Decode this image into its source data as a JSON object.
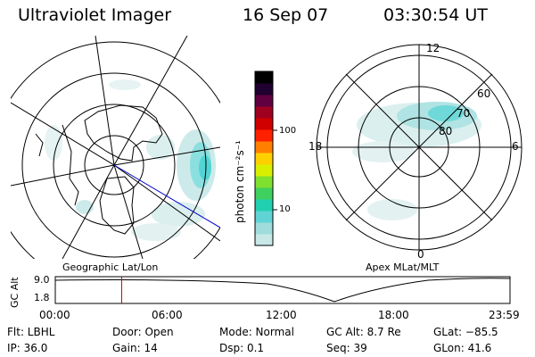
{
  "header": {
    "title": "Ultraviolet Imager",
    "date": "16 Sep 07",
    "time": "03:30:54 UT"
  },
  "geo_panel": {
    "caption": "Geographic Lat/Lon"
  },
  "apex_panel": {
    "caption": "Apex MLat/MLT",
    "mlt_labels": {
      "top": "12",
      "right": "6",
      "bottom": "0",
      "left": "18"
    },
    "mlat_labels": [
      "60",
      "70",
      "80"
    ]
  },
  "colorbar": {
    "title": "photon cm⁻²s⁻¹",
    "ticks": [
      "100",
      "10"
    ],
    "colors": [
      "#c8e8e8",
      "#a0dcdc",
      "#60d4d4",
      "#20d0b0",
      "#40d060",
      "#80e030",
      "#d8f000",
      "#ffd000",
      "#ff8000",
      "#ff2000",
      "#d00000",
      "#a00020",
      "#600040",
      "#200030",
      "#000000"
    ]
  },
  "altitude_plot": {
    "y_axis_label": "GC Alt",
    "y_ticks": [
      "9.0",
      "1.8"
    ],
    "time_ticks": [
      "00:00",
      "06:00",
      "12:00",
      "18:00",
      "23:59"
    ],
    "current_time_fraction": 0.146
  },
  "info": {
    "flt": "Flt: LBHL",
    "door": "Door: Open",
    "mode": "Mode: Normal",
    "gc_alt": "GC Alt: 8.7 Re",
    "glat": "GLat: −85.5",
    "ip": "IP: 36.0",
    "gain": "Gain: 14",
    "dsp": "Dsp:    0.1",
    "seq": "Seq: 39",
    "glon": "GLon:  41.6"
  },
  "colors": {
    "aurora_faint": "#c8e8e8",
    "aurora_mid": "#80dcdc",
    "aurora_bright": "#40d0d0",
    "marker_red": "#cc0000",
    "track_blue": "#0000cc"
  }
}
